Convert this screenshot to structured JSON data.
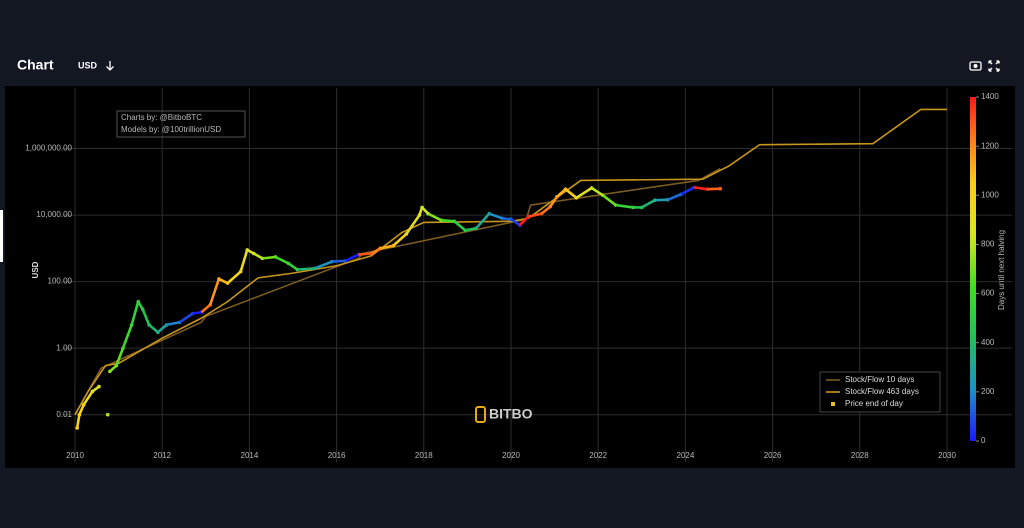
{
  "header": {
    "title": "Chart",
    "currency": "USD"
  },
  "chart_data": {
    "type": "line",
    "annotation": [
      "Charts by: @BitboBTC",
      "Models by: @100trillionUSD"
    ],
    "watermark": "BITBO",
    "ylabel": "USD",
    "log_y": true,
    "grid": true,
    "legend": "bottom-right",
    "xlim": [
      2010,
      2030
    ],
    "xticks": [
      2010,
      2012,
      2014,
      2016,
      2018,
      2020,
      2022,
      2024,
      2026,
      2028,
      2030
    ],
    "ylim": [
      0.0005,
      50000000
    ],
    "yticks": [
      0.01,
      {
        "value": 1,
        "label": "1.00"
      },
      {
        "value": 100,
        "label": "100.00"
      },
      {
        "value": 10000,
        "label": "10,000.00"
      },
      {
        "value": 1000000,
        "label": "1,000,000.00"
      }
    ],
    "colorbar": {
      "title": "Days until next halving",
      "lim": [
        0,
        1400
      ],
      "ticks": [
        0,
        200,
        400,
        600,
        800,
        1000,
        1200,
        1400
      ],
      "colorscale": [
        [
          0,
          "#1a1aff"
        ],
        [
          0.15,
          "#1e90c8"
        ],
        [
          0.3,
          "#22c05a"
        ],
        [
          0.45,
          "#44dd22"
        ],
        [
          0.6,
          "#d6e61e"
        ],
        [
          0.75,
          "#ffcc1a"
        ],
        [
          0.88,
          "#ff7a1a"
        ],
        [
          1,
          "#ff1a1a"
        ]
      ]
    },
    "series": [
      {
        "name": "Stock/Flow 10 days",
        "type": "line",
        "color": "#7a5c22",
        "x": [
          2010.0,
          2010.6,
          2012.9,
          2013.0,
          2016.5,
          2016.6,
          2020.35,
          2020.45,
          2024.3,
          2024.8
        ],
        "values": [
          0.01,
          0.25,
          6,
          9,
          500,
          700,
          7500,
          20000,
          110000,
          250000
        ]
      },
      {
        "name": "Stock/Flow 463 days",
        "type": "line",
        "color": "#c8961e",
        "x": [
          2010.0,
          2010.3,
          2010.7,
          2011.0,
          2012.0,
          2012.9,
          2013.5,
          2014.2,
          2015.0,
          2016.0,
          2016.8,
          2017.5,
          2018.0,
          2020.0,
          2020.4,
          2021.0,
          2021.6,
          2024.4,
          2025.0,
          2025.7,
          2028.3,
          2029.4,
          2030.0
        ],
        "values": [
          0.01,
          0.05,
          0.3,
          0.35,
          2,
          8,
          25,
          130,
          180,
          300,
          600,
          3000,
          6000,
          6500,
          8000,
          30000,
          110000,
          120000,
          300000,
          1300000,
          1400000,
          15000000,
          15000000
        ]
      },
      {
        "name": "Price end of day",
        "type": "scatter",
        "color": "#e6c21a",
        "x": [
          2010.05,
          2010.1,
          2010.2,
          2010.4,
          2010.55,
          2010.75,
          2010.8,
          2010.95,
          2011.1,
          2011.3,
          2011.45,
          2011.55,
          2011.7,
          2011.9,
          2012.1,
          2012.4,
          2012.7,
          2012.9,
          2013.1,
          2013.3,
          2013.5,
          2013.8,
          2013.95,
          2014.1,
          2014.3,
          2014.6,
          2014.9,
          2015.1,
          2015.5,
          2015.9,
          2016.2,
          2016.5,
          2016.8,
          2017.0,
          2017.3,
          2017.6,
          2017.9,
          2017.96,
          2018.1,
          2018.4,
          2018.7,
          2018.95,
          2019.2,
          2019.5,
          2019.8,
          2020.0,
          2020.2,
          2020.4,
          2020.7,
          2020.9,
          2021.05,
          2021.25,
          2021.5,
          2021.85,
          2022.1,
          2022.4,
          2022.8,
          2023.0,
          2023.3,
          2023.6,
          2023.9,
          2024.2,
          2024.5,
          2024.8
        ],
        "values": [
          0.004,
          0.01,
          0.02,
          0.05,
          0.07,
          0.01,
          0.2,
          0.3,
          1,
          5,
          25,
          15,
          5,
          3,
          5,
          6,
          11,
          12,
          20,
          120,
          90,
          200,
          900,
          700,
          500,
          550,
          350,
          230,
          250,
          400,
          420,
          650,
          700,
          1000,
          1200,
          2700,
          10000,
          17000,
          11000,
          7000,
          6500,
          3500,
          4000,
          11000,
          8000,
          7500,
          5000,
          9000,
          11000,
          18000,
          35000,
          60000,
          33000,
          65000,
          40000,
          20000,
          17000,
          17000,
          28000,
          29000,
          42000,
          68000,
          60000,
          62000
        ],
        "days": [
          1044,
          1026,
          989,
          916,
          861,
          788,
          770,
          715,
          661,
          588,
          533,
          496,
          442,
          369,
          296,
          186,
          77,
          4,
          1248,
          1175,
          1102,
          993,
          938,
          883,
          810,
          701,
          591,
          518,
          372,
          226,
          117,
          7,
          1299,
          1226,
          1117,
          1007,
          898,
          876,
          825,
          715,
          606,
          515,
          423,
          314,
          204,
          131,
          58,
          1424,
          1314,
          1241,
          1186,
          1113,
          1022,
          894,
          803,
          694,
          548,
          475,
          365,
          256,
          146,
          37,
          1387,
          1278
        ]
      }
    ]
  }
}
